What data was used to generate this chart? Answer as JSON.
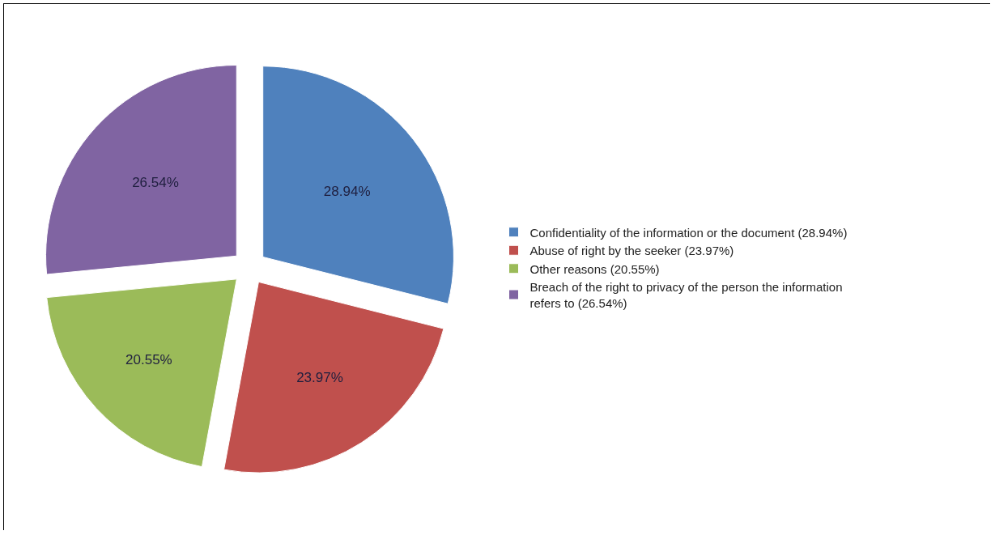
{
  "chart_data": {
    "type": "pie",
    "categories": [
      "Confidentiality of the information or the document (28.94%)",
      "Abuse of right by the seeker (23.97%)",
      "Other reasons (20.55%)",
      "Breach of the right to privacy of the person the information refers to (26.54%)"
    ],
    "values": [
      28.94,
      23.97,
      20.55,
      26.54
    ],
    "value_labels": [
      "28.94%",
      "23.97%",
      "20.55%",
      "26.54%"
    ],
    "colors": [
      "#4f81bd",
      "#c0504d",
      "#9bbb59",
      "#8064a2"
    ],
    "legend": "right"
  }
}
